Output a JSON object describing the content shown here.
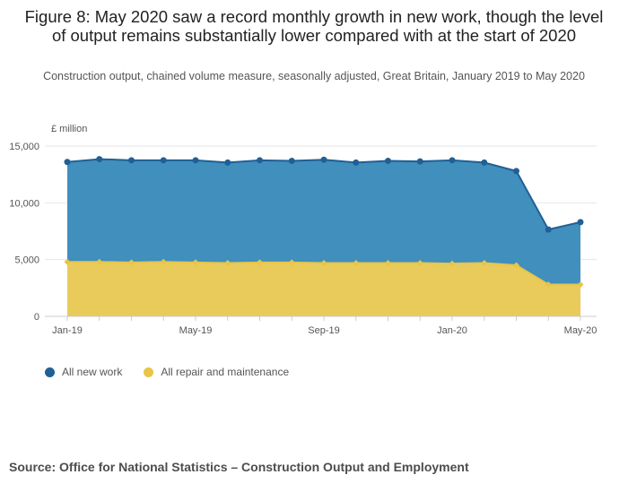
{
  "title": "Figure 8: May 2020 saw a record monthly growth in new work, though the level of output remains substantially lower compared with at the start of 2020",
  "subtitle": "Construction output, chained volume measure, seasonally adjusted, Great Britain, January 2019 to May 2020",
  "source": "Source: Office for National Statistics – Construction Output and Employment",
  "chart_data": {
    "type": "area",
    "ylabel": "£ million",
    "ylim": [
      0,
      15000
    ],
    "yticks": [
      0,
      5000,
      10000,
      15000
    ],
    "ytick_labels": [
      "0",
      "5,000",
      "10,000",
      "15,000"
    ],
    "x": [
      "Jan-19",
      "Feb-19",
      "Mar-19",
      "Apr-19",
      "May-19",
      "Jun-19",
      "Jul-19",
      "Aug-19",
      "Sep-19",
      "Oct-19",
      "Nov-19",
      "Dec-19",
      "Jan-20",
      "Feb-20",
      "Mar-20",
      "Apr-20",
      "May-20"
    ],
    "xtick_labels": [
      {
        "index": 0,
        "label": "Jan-19"
      },
      {
        "index": 4,
        "label": "May-19"
      },
      {
        "index": 8,
        "label": "Sep-19"
      },
      {
        "index": 12,
        "label": "Jan-20"
      },
      {
        "index": 16,
        "label": "May-20"
      }
    ],
    "grid": true,
    "legend_position": "bottom-left",
    "series": [
      {
        "name": "All new work",
        "color": "#206095",
        "fill": "#3c8dbc",
        "values": [
          13600,
          13850,
          13750,
          13750,
          13750,
          13550,
          13750,
          13700,
          13800,
          13550,
          13700,
          13650,
          13750,
          13550,
          12800,
          7650,
          8300
        ]
      },
      {
        "name": "All repair and maintenance",
        "color": "#e8c547",
        "fill": "#e8cb5a",
        "values": [
          4800,
          4800,
          4750,
          4800,
          4750,
          4700,
          4750,
          4750,
          4700,
          4700,
          4700,
          4700,
          4650,
          4700,
          4500,
          2800,
          2800
        ]
      }
    ]
  }
}
